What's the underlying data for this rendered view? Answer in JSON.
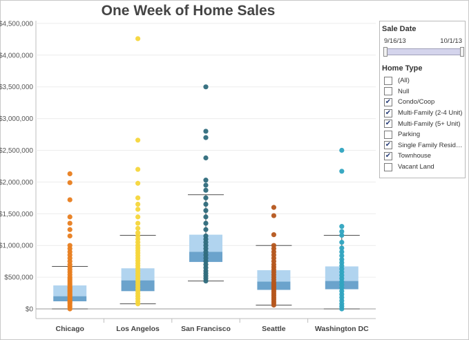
{
  "title": "One Week of Home Sales",
  "chart_data": {
    "type": "box",
    "title": "One Week of Home Sales",
    "categories": [
      "Chicago",
      "Los Angelos",
      "San Francisco",
      "Seattle",
      "Washington DC"
    ],
    "y_tick_labels": [
      "$0",
      "$500,000",
      "$1,000,000",
      "$1,500,000",
      "$2,000,000",
      "$2,500,000",
      "$3,000,000",
      "$3,500,000",
      "$4,000,000",
      "$4,500,000"
    ],
    "y_ticks": [
      0,
      500000,
      1000000,
      1500000,
      2000000,
      2500000,
      3000000,
      3500000,
      4000000,
      4500000
    ],
    "ylim": [
      -50000,
      4500000
    ],
    "grid": true,
    "colors": {
      "Chicago": "#e87d1e",
      "Los Angelos": "#f5d63b",
      "San Francisco": "#2f6b7c",
      "Seattle": "#b5561c",
      "Washington DC": "#2fa4c0",
      "box_upper": "#b1d4ef",
      "box_lower": "#6ba3cc"
    },
    "boxes": [
      {
        "category": "Chicago",
        "whisker_low": 0,
        "q1": 120000,
        "median": 200000,
        "q3": 370000,
        "whisker_high": 670000
      },
      {
        "category": "Los Angelos",
        "whisker_low": 80000,
        "q1": 280000,
        "median": 450000,
        "q3": 640000,
        "whisker_high": 1160000
      },
      {
        "category": "San Francisco",
        "whisker_low": 440000,
        "q1": 740000,
        "median": 900000,
        "q3": 1170000,
        "whisker_high": 1800000
      },
      {
        "category": "Seattle",
        "whisker_low": 60000,
        "q1": 300000,
        "median": 430000,
        "q3": 610000,
        "whisker_high": 1000000
      },
      {
        "category": "Washington DC",
        "whisker_low": 0,
        "q1": 310000,
        "median": 440000,
        "q3": 670000,
        "whisker_high": 1160000
      }
    ],
    "points": {
      "Chicago": [
        0,
        30000,
        60000,
        90000,
        110000,
        130000,
        150000,
        170000,
        190000,
        210000,
        230000,
        250000,
        270000,
        290000,
        310000,
        330000,
        350000,
        380000,
        410000,
        440000,
        470000,
        500000,
        540000,
        580000,
        620000,
        660000,
        700000,
        750000,
        800000,
        850000,
        900000,
        950000,
        1000000,
        1150000,
        1250000,
        1350000,
        1450000,
        1720000,
        1990000,
        2130000
      ],
      "Los Angelos": [
        80000,
        120000,
        160000,
        200000,
        240000,
        280000,
        320000,
        360000,
        400000,
        440000,
        480000,
        520000,
        560000,
        600000,
        640000,
        680000,
        720000,
        760000,
        800000,
        840000,
        880000,
        920000,
        960000,
        1000000,
        1050000,
        1100000,
        1150000,
        1200000,
        1270000,
        1350000,
        1450000,
        1570000,
        1650000,
        1750000,
        1980000,
        2200000,
        2660000,
        4260000
      ],
      "San Francisco": [
        440000,
        480000,
        520000,
        560000,
        600000,
        650000,
        700000,
        750000,
        800000,
        850000,
        900000,
        950000,
        1000000,
        1050000,
        1100000,
        1150000,
        1250000,
        1350000,
        1450000,
        1550000,
        1650000,
        1750000,
        1870000,
        1950000,
        2030000,
        2380000,
        2700000,
        2800000,
        3500000
      ],
      "Seattle": [
        60000,
        90000,
        120000,
        150000,
        180000,
        210000,
        240000,
        270000,
        300000,
        330000,
        360000,
        390000,
        420000,
        460000,
        500000,
        540000,
        580000,
        620000,
        660000,
        700000,
        750000,
        800000,
        850000,
        900000,
        950000,
        1000000,
        1170000,
        1470000,
        1600000
      ],
      "Washington DC": [
        0,
        40000,
        80000,
        130000,
        180000,
        230000,
        280000,
        330000,
        380000,
        430000,
        480000,
        530000,
        580000,
        630000,
        680000,
        730000,
        780000,
        840000,
        900000,
        960000,
        1050000,
        1160000,
        1220000,
        1300000,
        2170000,
        2500000
      ]
    }
  },
  "filters": {
    "sale_date": {
      "title": "Sale Date",
      "start": "9/16/13",
      "end": "10/1/13"
    },
    "home_type": {
      "title": "Home Type",
      "items": [
        {
          "label": "(All)",
          "checked": false
        },
        {
          "label": "Null",
          "checked": false
        },
        {
          "label": "Condo/Coop",
          "checked": true
        },
        {
          "label": "Multi-Family (2-4 Unit)",
          "checked": true
        },
        {
          "label": "Multi-Family (5+ Unit)",
          "checked": true
        },
        {
          "label": "Parking",
          "checked": false
        },
        {
          "label": "Single Family Reside...",
          "checked": true
        },
        {
          "label": "Townhouse",
          "checked": true
        },
        {
          "label": "Vacant Land",
          "checked": false
        }
      ]
    }
  }
}
